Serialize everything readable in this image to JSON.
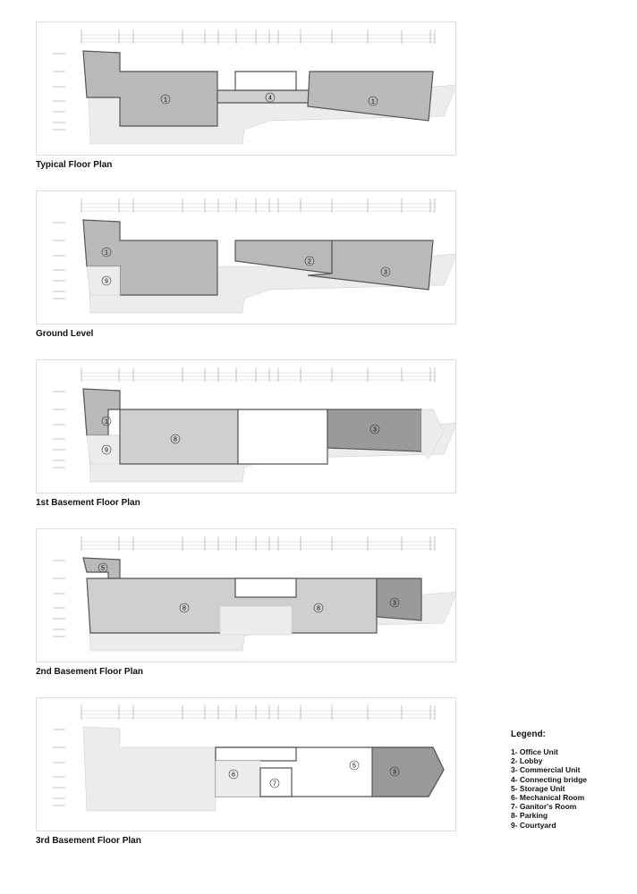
{
  "plans": [
    {
      "title": "Typical Floor Plan",
      "labels": [
        "1",
        "4",
        "1"
      ]
    },
    {
      "title": "Ground Level",
      "labels": [
        "1",
        "9",
        "2",
        "3"
      ]
    },
    {
      "title": "1st Basement Floor Plan",
      "labels": [
        "1",
        "9",
        "8",
        "3"
      ]
    },
    {
      "title": "2nd Basement Floor Plan",
      "labels": [
        "5",
        "8",
        "8",
        "3"
      ]
    },
    {
      "title": "3rd Basement Floor Plan",
      "labels": [
        "6",
        "7",
        "5",
        "3"
      ]
    }
  ],
  "legend": {
    "title": "Legend:",
    "items": [
      "1- Office Unit",
      "2- Lobby",
      "3- Commercial Unit",
      "4- Connecting bridge",
      "5- Storage Unit",
      "6- Mechanical Room",
      "7- Ganitor's Room",
      "8- Parking",
      "9- Courtyard"
    ]
  },
  "colors": {
    "office": "#b9b9b9",
    "commercial": "#9a9a9a",
    "parking": "#cfcfcf",
    "site": "#ececec",
    "wall": "#555555"
  }
}
